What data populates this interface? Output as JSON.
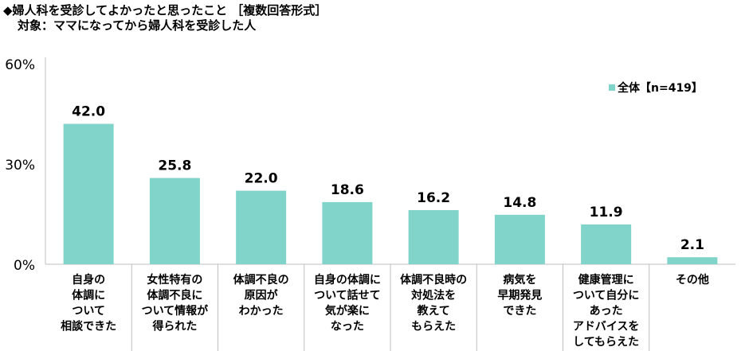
{
  "title": "◆婦人科を受診してよかったと思ったこと ［複数回答形式］",
  "subtitle": "対象：ママになってから婦人科を受診した人",
  "chart_data": {
    "type": "bar",
    "title": "婦人科を受診してよかったと思ったこと ［複数回答形式］",
    "ylim": [
      0,
      60
    ],
    "yticks": [
      "0%",
      "30%",
      "60%"
    ],
    "ytick_values": [
      0,
      30,
      60
    ],
    "legend": {
      "label": "全体【n=419】",
      "placement": "top-right"
    },
    "bar_color": "#80d4c9",
    "categories": [
      [
        "自身の",
        "体調に",
        "ついて",
        "相談できた"
      ],
      [
        "女性特有の",
        "体調不良に",
        "ついて情報が",
        "得られた"
      ],
      [
        "体調不良の",
        "原因が",
        "わかった"
      ],
      [
        "自身の体調に",
        "ついて話せて",
        "気が楽に",
        "なった"
      ],
      [
        "体調不良時の",
        "対処法を",
        "教えて",
        "もらえた"
      ],
      [
        "病気を",
        "早期発見",
        "できた"
      ],
      [
        "健康管理に",
        "ついて自分に",
        "あった",
        "アドバイスを",
        "してもらえた"
      ],
      [
        "その他"
      ]
    ],
    "values": [
      42.0,
      25.8,
      22.0,
      18.6,
      16.2,
      14.8,
      11.9,
      2.1
    ],
    "value_labels": [
      "42.0",
      "25.8",
      "22.0",
      "18.6",
      "16.2",
      "14.8",
      "11.9",
      "2.1"
    ]
  }
}
